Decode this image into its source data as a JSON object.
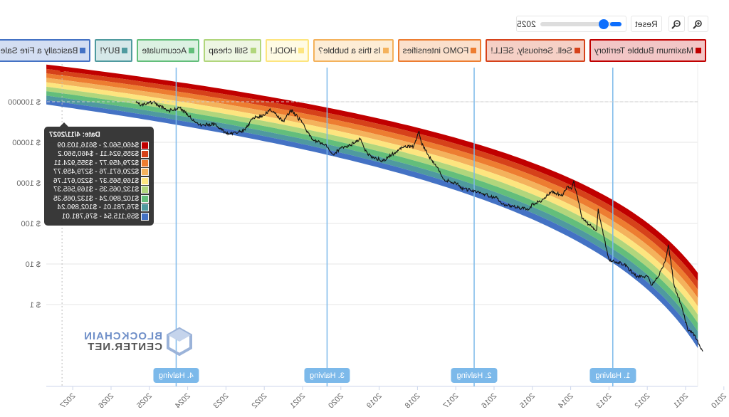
{
  "toolbar": {
    "zoom_in_icon": "zoom-in-icon",
    "zoom_out_icon": "zoom-out-icon",
    "reset_label": "Reset",
    "year_slider_value": "2025",
    "slider_fill_color": "#0d6efd"
  },
  "legend": [
    {
      "label": "Maximum Bubble Territory",
      "color": "#c00000",
      "bg": "#f2c6c6"
    },
    {
      "label": "Sell. Seriously, SELL!",
      "color": "#d6421a",
      "bg": "#f5d0c6"
    },
    {
      "label": "FOMO intensifies",
      "color": "#ed7d31",
      "bg": "#fbe0cc"
    },
    {
      "label": "Is this a bubble?",
      "color": "#f4b25c",
      "bg": "#fdedd6"
    },
    {
      "label": "HODL!",
      "color": "#fde57f",
      "bg": "#fffbe4"
    },
    {
      "label": "Still cheap",
      "color": "#b1d67c",
      "bg": "#eef6e3"
    },
    {
      "label": "Accumulate",
      "color": "#63be7b",
      "bg": "#dcf1e2"
    },
    {
      "label": "BUY!",
      "color": "#4f9a9f",
      "bg": "#d6e8e9"
    },
    {
      "label": "Basically a Fire Sale",
      "color": "#4472c4",
      "bg": "#d3def2"
    }
  ],
  "tooltip": {
    "date": "Date: 4/11/2027",
    "rows": [
      "$460,560.2 - $616,103.09",
      "$355,924.11 - $460,560.2",
      "$279,459.77 - $355,924.11",
      "$220,671.76 - $279,459.77",
      "$169,565.37 - $220,671.76",
      "$132,065.35 - $169,565.37",
      "$102,890.24 - $132,065.35",
      "$76,781.01 - $102,890.24",
      "$59,115.54 - $76,781.01"
    ]
  },
  "logo": {
    "line1": "BLOCKCHAIN",
    "line2": "CENTER.NET"
  },
  "chart_data": {
    "type": "area",
    "y_scale": "log",
    "ylim": [
      0.1,
      1000000
    ],
    "xlim": [
      2010.68,
      2027.69
    ],
    "grid": true,
    "y_ticks": [
      "$ 1",
      "$ 10",
      "$ 100",
      "$ 1000",
      "$ 10000",
      "$ 100000"
    ],
    "y_tick_values": [
      1,
      10,
      100,
      1000,
      10000,
      100000
    ],
    "x_ticks": [
      "2010",
      "2011",
      "2012",
      "2013",
      "2014",
      "2015",
      "2016",
      "2017",
      "2018",
      "2019",
      "2020",
      "2021",
      "2022",
      "2023",
      "2024",
      "2025",
      "2026",
      "2027"
    ],
    "band_top_model": {
      "log10_price_per_ln_days": 2.13,
      "intercept": -12.886,
      "days_since": "2009-01-03"
    },
    "band_bottom_model": {
      "log10_price_per_ln_days": 2.49,
      "intercept": -17.05,
      "days_since": "2009-01-03"
    },
    "halvings": [
      {
        "label": "1. Halving",
        "year": 2012.9
      },
      {
        "label": "2. Halving",
        "year": 2016.52
      },
      {
        "label": "3. Halving",
        "year": 2020.36
      },
      {
        "label": "4. Halving",
        "year": 2024.3
      }
    ],
    "hover_year": 2027.28,
    "price": [
      [
        2010.55,
        0.07
      ],
      [
        2010.8,
        0.2
      ],
      [
        2010.95,
        0.25
      ],
      [
        2011.1,
        0.9
      ],
      [
        2011.3,
        3
      ],
      [
        2011.45,
        30
      ],
      [
        2011.5,
        15
      ],
      [
        2011.7,
        5
      ],
      [
        2011.9,
        3
      ],
      [
        2012.0,
        5
      ],
      [
        2012.3,
        5
      ],
      [
        2012.6,
        10
      ],
      [
        2012.9,
        12
      ],
      [
        2013.0,
        13
      ],
      [
        2013.2,
        90
      ],
      [
        2013.28,
        230
      ],
      [
        2013.32,
        70
      ],
      [
        2013.5,
        90
      ],
      [
        2013.7,
        130
      ],
      [
        2013.92,
        1100
      ],
      [
        2013.98,
        700
      ],
      [
        2014.1,
        800
      ],
      [
        2014.2,
        500
      ],
      [
        2014.5,
        600
      ],
      [
        2014.8,
        350
      ],
      [
        2015.0,
        300
      ],
      [
        2015.1,
        220
      ],
      [
        2015.5,
        260
      ],
      [
        2015.8,
        300
      ],
      [
        2015.9,
        420
      ],
      [
        2016.0,
        430
      ],
      [
        2016.5,
        650
      ],
      [
        2016.8,
        700
      ],
      [
        2017.0,
        1000
      ],
      [
        2017.3,
        1200
      ],
      [
        2017.5,
        2500
      ],
      [
        2017.7,
        4500
      ],
      [
        2017.9,
        10000
      ],
      [
        2017.96,
        19000
      ],
      [
        2018.1,
        8000
      ],
      [
        2018.4,
        7500
      ],
      [
        2018.9,
        3500
      ],
      [
        2019.0,
        3800
      ],
      [
        2019.3,
        5000
      ],
      [
        2019.5,
        12000
      ],
      [
        2019.8,
        8000
      ],
      [
        2020.0,
        7200
      ],
      [
        2020.2,
        5000
      ],
      [
        2020.4,
        9000
      ],
      [
        2020.7,
        11000
      ],
      [
        2020.9,
        19000
      ],
      [
        2021.0,
        30000
      ],
      [
        2021.3,
        63000
      ],
      [
        2021.5,
        33000
      ],
      [
        2021.85,
        67000
      ],
      [
        2022.0,
        46000
      ],
      [
        2022.3,
        40000
      ],
      [
        2022.5,
        20000
      ],
      [
        2022.9,
        16000
      ],
      [
        2023.0,
        17000
      ],
      [
        2023.3,
        28000
      ],
      [
        2023.7,
        27000
      ],
      [
        2023.95,
        43000
      ],
      [
        2024.2,
        70000
      ],
      [
        2024.5,
        60000
      ],
      [
        2024.9,
        98000
      ],
      [
        2025.0,
        94000
      ],
      [
        2025.2,
        84000
      ],
      [
        2025.35,
        95000
      ]
    ]
  }
}
